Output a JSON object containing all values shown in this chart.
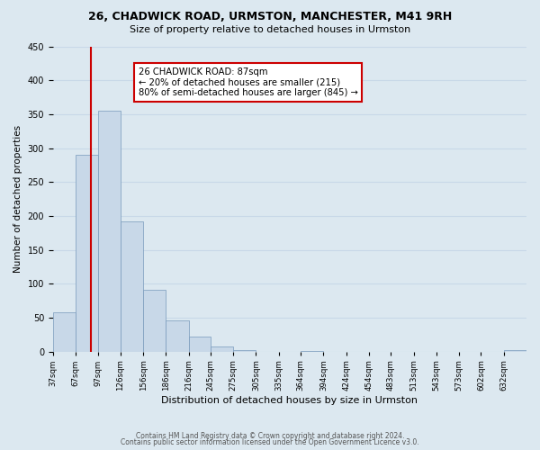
{
  "title": "26, CHADWICK ROAD, URMSTON, MANCHESTER, M41 9RH",
  "subtitle": "Size of property relative to detached houses in Urmston",
  "xlabel": "Distribution of detached houses by size in Urmston",
  "ylabel": "Number of detached properties",
  "bin_labels": [
    "37sqm",
    "67sqm",
    "97sqm",
    "126sqm",
    "156sqm",
    "186sqm",
    "216sqm",
    "245sqm",
    "275sqm",
    "305sqm",
    "335sqm",
    "364sqm",
    "394sqm",
    "424sqm",
    "454sqm",
    "483sqm",
    "513sqm",
    "543sqm",
    "573sqm",
    "602sqm",
    "632sqm"
  ],
  "bin_edges": [
    37,
    67,
    97,
    126,
    156,
    186,
    216,
    245,
    275,
    305,
    335,
    364,
    394,
    424,
    454,
    483,
    513,
    543,
    573,
    602,
    632,
    662
  ],
  "bar_heights": [
    58,
    290,
    355,
    192,
    91,
    46,
    22,
    8,
    2,
    0,
    0,
    1,
    0,
    0,
    0,
    0,
    0,
    0,
    0,
    0,
    2
  ],
  "bar_color": "#c8d8e8",
  "bar_edgecolor": "#7799bb",
  "property_line_x": 87,
  "property_line_color": "#cc0000",
  "annotation_text": "26 CHADWICK ROAD: 87sqm\n← 20% of detached houses are smaller (215)\n80% of semi-detached houses are larger (845) →",
  "annotation_box_color": "#ffffff",
  "annotation_box_edgecolor": "#cc0000",
  "ylim": [
    0,
    450
  ],
  "yticks": [
    0,
    50,
    100,
    150,
    200,
    250,
    300,
    350,
    400,
    450
  ],
  "grid_color": "#c8d8e8",
  "background_color": "#dce8f0",
  "plot_bg_color": "#dce8f0",
  "footer1": "Contains HM Land Registry data © Crown copyright and database right 2024.",
  "footer2": "Contains public sector information licensed under the Open Government Licence v3.0."
}
